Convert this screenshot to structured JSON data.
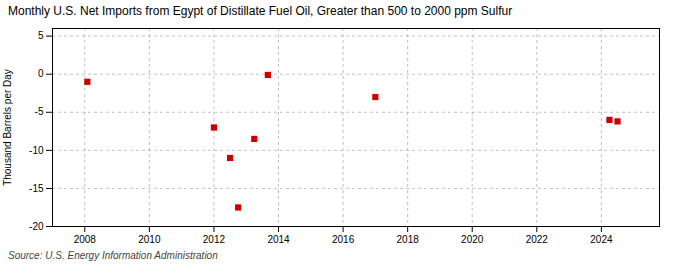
{
  "chart_data": {
    "type": "scatter",
    "title": "Monthly U.S. Net Imports from Egypt of Distillate Fuel Oil, Greater than 500 to 2000 ppm Sulfur",
    "ylabel": "Thousand Barrels per Day",
    "source": "Source: U.S. Energy Information Administration",
    "x": [
      2008.08,
      2012.0,
      2012.5,
      2012.75,
      2013.25,
      2013.67,
      2017.0,
      2024.25,
      2024.5
    ],
    "values": [
      -1.0,
      -7.0,
      -11.0,
      -17.5,
      -8.5,
      -0.1,
      -3.0,
      -6.0,
      -6.2
    ],
    "color": "#cc0000",
    "marker": "square",
    "xlim": [
      2007.0,
      2025.8
    ],
    "ylim": [
      -20,
      6
    ],
    "xticks": [
      2008,
      2010,
      2012,
      2014,
      2016,
      2018,
      2020,
      2022,
      2024
    ],
    "yticks": [
      -20,
      -15,
      -10,
      -5,
      0,
      5
    ],
    "grid": true
  }
}
